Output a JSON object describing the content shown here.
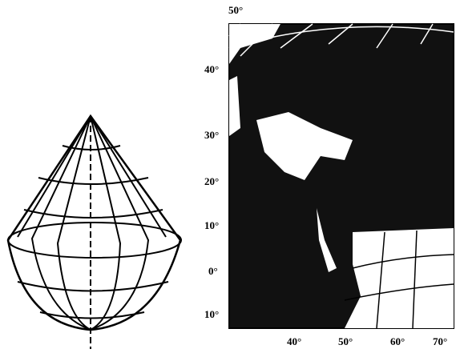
{
  "map": {
    "lat_labels": [
      "50°",
      "40°",
      "30°",
      "20°",
      "10°",
      "0°",
      "10°"
    ],
    "lon_labels": [
      "40°",
      "50°",
      "60°",
      "70°"
    ]
  }
}
